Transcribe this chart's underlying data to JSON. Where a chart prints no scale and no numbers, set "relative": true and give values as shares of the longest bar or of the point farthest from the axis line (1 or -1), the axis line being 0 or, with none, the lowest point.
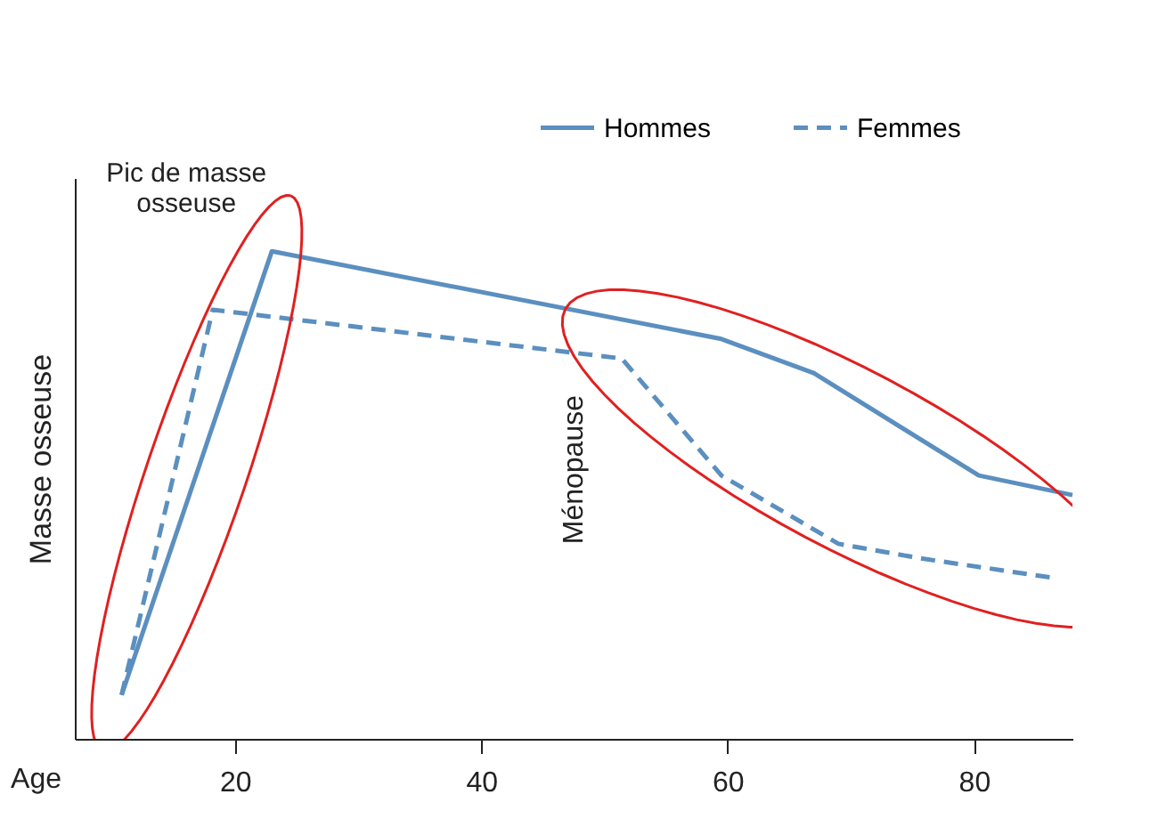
{
  "chart_data": {
    "type": "line",
    "relative": true,
    "xlabel": "Age",
    "ylabel": "Masse osseuse",
    "xlim": [
      7,
      88
    ],
    "xticks": [
      20,
      40,
      60,
      80
    ],
    "grid": false,
    "legend": "top right",
    "marker": "none",
    "series": [
      {
        "name": "Hommes",
        "color": "#5b8fbf",
        "line_style": "solid",
        "x": [
          10.8,
          23,
          59.5,
          67,
          80.4,
          88
        ],
        "values": [
          0.09,
          1,
          0.82,
          0.75,
          0.54,
          0.5
        ]
      },
      {
        "name": "Femmes",
        "color": "#5b8fbf",
        "line_style": "dashed",
        "x": [
          10.8,
          18.2,
          51.4,
          59.5,
          69,
          75.7,
          86.5
        ],
        "values": [
          0.09,
          0.88,
          0.78,
          0.54,
          0.4,
          0.37,
          0.33
        ]
      }
    ],
    "annotations": [
      {
        "text": "Pic de masse osseuse",
        "x": 23,
        "y": 1
      },
      "Ménopause"
    ]
  }
}
